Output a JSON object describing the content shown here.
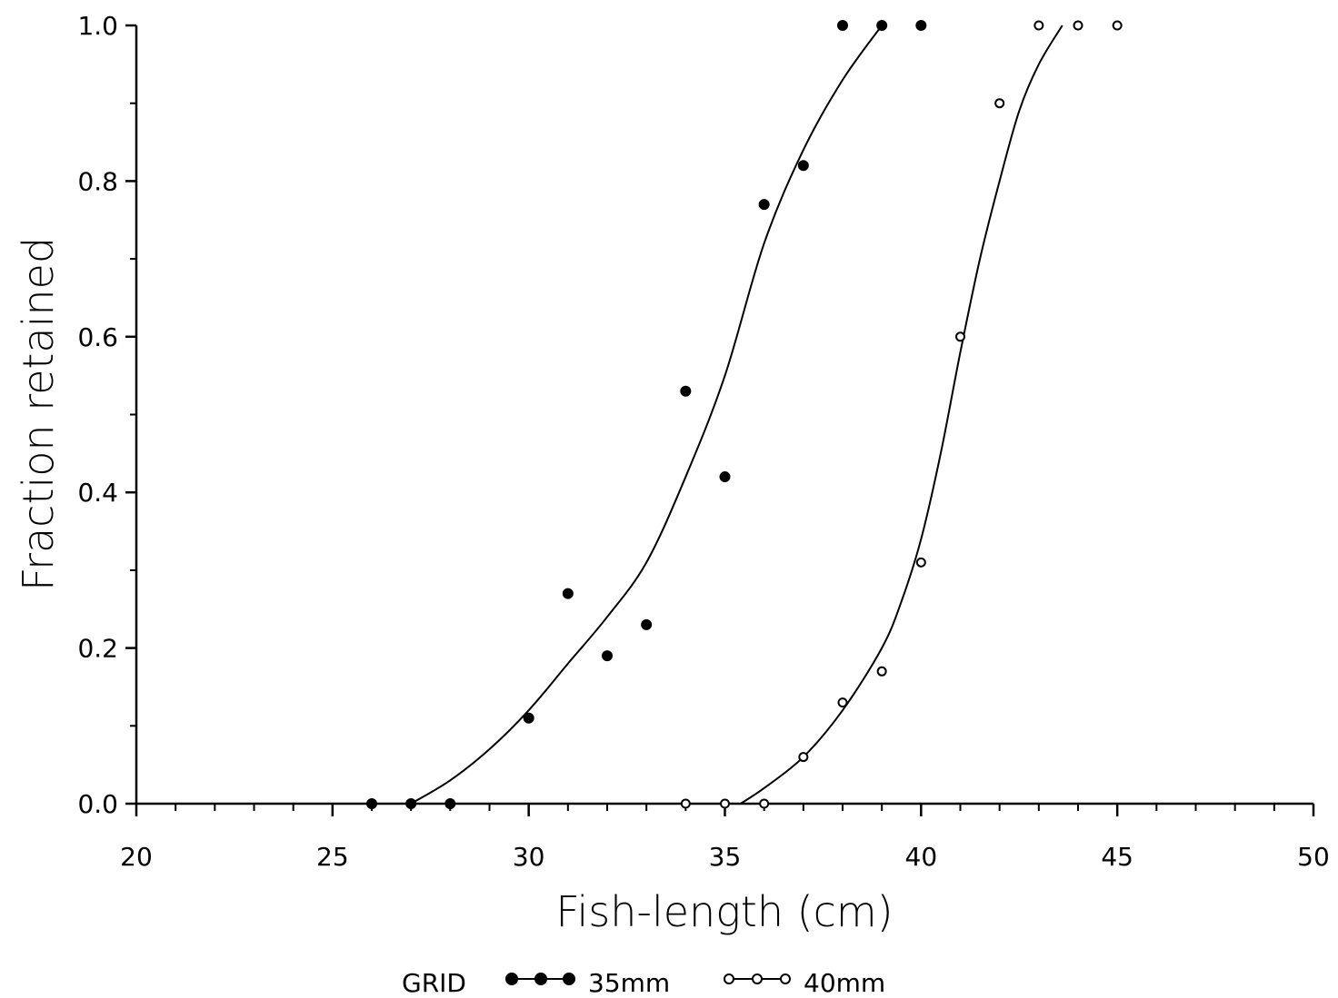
{
  "chart_data": {
    "type": "scatter",
    "xlabel": "Fish-length (cm)",
    "ylabel": "Fraction retained",
    "xlim": [
      20,
      50
    ],
    "ylim": [
      0,
      1
    ],
    "x_ticks": [
      "20",
      "25",
      "30",
      "35",
      "40",
      "45",
      "50"
    ],
    "y_ticks": [
      "0.0",
      "0.2",
      "0.4",
      "0.6",
      "0.8",
      "1.0"
    ],
    "grid": false,
    "legend": {
      "position": "bottom-center",
      "title": "GRID",
      "entries": [
        "35mm",
        "40mm"
      ]
    },
    "series": [
      {
        "name": "35mm",
        "marker": "filled-circle",
        "points": [
          {
            "x": 26,
            "y": 0.0
          },
          {
            "x": 27,
            "y": 0.0
          },
          {
            "x": 28,
            "y": 0.0
          },
          {
            "x": 30,
            "y": 0.11
          },
          {
            "x": 31,
            "y": 0.27
          },
          {
            "x": 32,
            "y": 0.19
          },
          {
            "x": 33,
            "y": 0.23
          },
          {
            "x": 34,
            "y": 0.53
          },
          {
            "x": 35,
            "y": 0.42
          },
          {
            "x": 36,
            "y": 0.77
          },
          {
            "x": 37,
            "y": 0.82
          },
          {
            "x": 38,
            "y": 1.0
          },
          {
            "x": 39,
            "y": 1.0
          },
          {
            "x": 40,
            "y": 1.0
          }
        ],
        "fit_curve": [
          {
            "x": 27.0,
            "y": 0.0
          },
          {
            "x": 28.0,
            "y": 0.03
          },
          {
            "x": 29.0,
            "y": 0.07
          },
          {
            "x": 30.0,
            "y": 0.12
          },
          {
            "x": 31.0,
            "y": 0.18
          },
          {
            "x": 32.0,
            "y": 0.24
          },
          {
            "x": 33.0,
            "y": 0.31
          },
          {
            "x": 34.0,
            "y": 0.42
          },
          {
            "x": 35.0,
            "y": 0.55
          },
          {
            "x": 36.0,
            "y": 0.72
          },
          {
            "x": 37.0,
            "y": 0.84
          },
          {
            "x": 38.0,
            "y": 0.93
          },
          {
            "x": 39.0,
            "y": 1.0
          }
        ]
      },
      {
        "name": "40mm",
        "marker": "open-circle",
        "points": [
          {
            "x": 34,
            "y": 0.0
          },
          {
            "x": 35,
            "y": 0.0
          },
          {
            "x": 36,
            "y": 0.0
          },
          {
            "x": 37,
            "y": 0.06
          },
          {
            "x": 38,
            "y": 0.13
          },
          {
            "x": 39,
            "y": 0.17
          },
          {
            "x": 40,
            "y": 0.31
          },
          {
            "x": 41,
            "y": 0.6
          },
          {
            "x": 42,
            "y": 0.9
          },
          {
            "x": 43,
            "y": 1.0
          },
          {
            "x": 44,
            "y": 1.0
          },
          {
            "x": 45,
            "y": 1.0
          }
        ],
        "fit_curve": [
          {
            "x": 35.4,
            "y": 0.0
          },
          {
            "x": 36.0,
            "y": 0.02
          },
          {
            "x": 37.0,
            "y": 0.06
          },
          {
            "x": 38.0,
            "y": 0.12
          },
          {
            "x": 39.0,
            "y": 0.2
          },
          {
            "x": 39.5,
            "y": 0.26
          },
          {
            "x": 40.0,
            "y": 0.34
          },
          {
            "x": 40.5,
            "y": 0.45
          },
          {
            "x": 41.0,
            "y": 0.58
          },
          {
            "x": 41.5,
            "y": 0.7
          },
          {
            "x": 42.0,
            "y": 0.8
          },
          {
            "x": 42.5,
            "y": 0.89
          },
          {
            "x": 43.0,
            "y": 0.95
          },
          {
            "x": 43.6,
            "y": 1.0
          }
        ]
      }
    ]
  }
}
